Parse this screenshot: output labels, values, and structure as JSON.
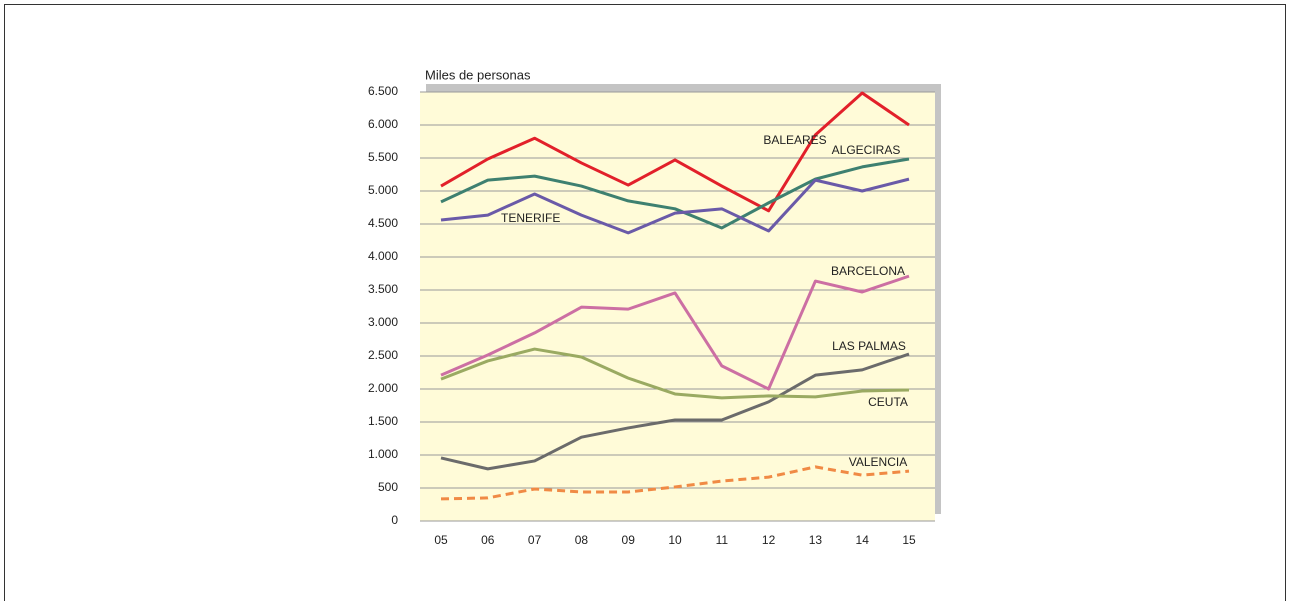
{
  "chart_data": {
    "type": "line",
    "y_label": "Miles de personas",
    "categories": [
      "05",
      "06",
      "07",
      "08",
      "09",
      "10",
      "11",
      "12",
      "13",
      "14",
      "15"
    ],
    "series": [
      {
        "name": "BALEARES",
        "color": "#e2202a",
        "values": [
          5075,
          5485,
          5800,
          5425,
          5090,
          5470,
          5075,
          4700,
          5850,
          6485,
          6000
        ]
      },
      {
        "name": "ALGECIRAS",
        "color": "#3e8070",
        "values": [
          4835,
          5165,
          5225,
          5075,
          4850,
          4730,
          4440,
          4820,
          5180,
          5365,
          5485
        ]
      },
      {
        "name": "TENERIFE",
        "color": "#6a5aa8",
        "values": [
          4560,
          4635,
          4955,
          4635,
          4365,
          4665,
          4730,
          4395,
          5165,
          5000,
          5180
        ]
      },
      {
        "name": "BARCELONA",
        "color": "#cc6fa3",
        "values": [
          2210,
          2515,
          2850,
          3240,
          3210,
          3455,
          2350,
          2000,
          3635,
          3470,
          3710
        ]
      },
      {
        "name": "LAS PALMAS",
        "color": "#6b6b6b",
        "values": [
          955,
          790,
          910,
          1270,
          1410,
          1530,
          1530,
          1805,
          2210,
          2290,
          2530
        ]
      },
      {
        "name": "CEUTA",
        "color": "#9aaa62",
        "values": [
          2150,
          2425,
          2605,
          2485,
          2165,
          1925,
          1865,
          1895,
          1880,
          1970,
          1985
        ]
      },
      {
        "name": "VALENCIA",
        "color": "#f08a45",
        "dashed": true,
        "values": [
          335,
          350,
          485,
          440,
          440,
          515,
          605,
          665,
          820,
          695,
          755
        ]
      }
    ],
    "ylim": [
      0,
      6500
    ],
    "yticks": [
      0,
      500,
      {
        "value": 1000,
        "label": "1.000"
      },
      {
        "value": 1500,
        "label": "1.500"
      },
      {
        "value": 2000,
        "label": "2.000"
      },
      {
        "value": 2500,
        "label": "2.500"
      },
      {
        "value": 3000,
        "label": "3.000"
      },
      {
        "value": 3500,
        "label": "3.500"
      },
      {
        "value": 4000,
        "label": "4.000"
      },
      {
        "value": 4500,
        "label": "4.500"
      },
      {
        "value": 5000,
        "label": "5.000"
      },
      {
        "value": 5500,
        "label": "5.500"
      },
      {
        "value": 6000,
        "label": "6.000"
      },
      {
        "value": 6500,
        "label": "6.500"
      }
    ],
    "grid": true
  }
}
